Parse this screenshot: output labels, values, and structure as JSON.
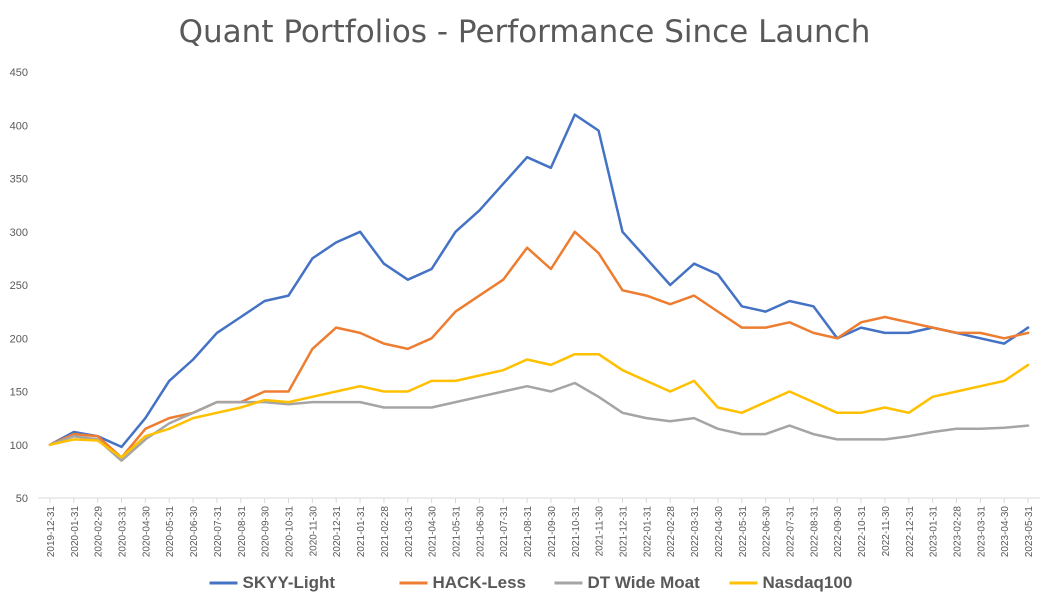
{
  "chart_data": {
    "type": "line",
    "title": "Quant Portfolios - Performance Since Launch",
    "xlabel": "",
    "ylabel": "",
    "ylim": [
      50,
      450
    ],
    "yticks": [
      50,
      100,
      150,
      200,
      250,
      300,
      350,
      400,
      450
    ],
    "grid": false,
    "legend_position": "bottom",
    "categories": [
      "2019-12-31",
      "2020-01-31",
      "2020-02-29",
      "2020-03-31",
      "2020-04-30",
      "2020-05-31",
      "2020-06-30",
      "2020-07-31",
      "2020-08-31",
      "2020-09-30",
      "2020-10-31",
      "2020-11-30",
      "2020-12-31",
      "2021-01-31",
      "2021-02-28",
      "2021-03-31",
      "2021-04-30",
      "2021-05-31",
      "2021-06-30",
      "2021-07-31",
      "2021-08-31",
      "2021-09-30",
      "2021-10-31",
      "2021-11-30",
      "2021-12-31",
      "2022-01-31",
      "2022-02-28",
      "2022-03-31",
      "2022-04-30",
      "2022-05-31",
      "2022-06-30",
      "2022-07-31",
      "2022-08-31",
      "2022-09-30",
      "2022-10-31",
      "2022-11-30",
      "2022-12-31",
      "2023-01-31",
      "2023-02-28",
      "2023-03-31",
      "2023-04-30",
      "2023-05-31"
    ],
    "series": [
      {
        "name": "SKYY-Light",
        "color": "#4472C4",
        "values": [
          100,
          112,
          108,
          98,
          125,
          160,
          180,
          205,
          220,
          235,
          240,
          275,
          290,
          300,
          270,
          255,
          265,
          300,
          320,
          345,
          370,
          360,
          410,
          395,
          300,
          275,
          250,
          270,
          260,
          230,
          225,
          235,
          230,
          200,
          210,
          205,
          205,
          210,
          205,
          200,
          195,
          210
        ]
      },
      {
        "name": "HACK-Less",
        "color": "#ED7D31",
        "values": [
          100,
          110,
          108,
          88,
          115,
          125,
          130,
          140,
          140,
          150,
          150,
          190,
          210,
          205,
          195,
          190,
          200,
          225,
          240,
          255,
          285,
          265,
          300,
          280,
          245,
          240,
          232,
          240,
          225,
          210,
          210,
          215,
          205,
          200,
          215,
          220,
          215,
          210,
          205,
          205,
          200,
          205
        ]
      },
      {
        "name": "DT Wide Moat",
        "color": "#A5A5A5",
        "values": [
          100,
          108,
          105,
          85,
          105,
          120,
          130,
          140,
          140,
          140,
          138,
          140,
          140,
          140,
          135,
          135,
          135,
          140,
          145,
          150,
          155,
          150,
          158,
          145,
          130,
          125,
          122,
          125,
          115,
          110,
          110,
          118,
          110,
          105,
          105,
          105,
          108,
          112,
          115,
          115,
          116,
          118
        ]
      },
      {
        "name": "Nasdaq100",
        "color": "#FFC000",
        "values": [
          100,
          105,
          104,
          88,
          108,
          115,
          125,
          130,
          135,
          142,
          140,
          145,
          150,
          155,
          150,
          150,
          160,
          160,
          165,
          170,
          180,
          175,
          185,
          185,
          170,
          160,
          150,
          160,
          135,
          130,
          140,
          150,
          140,
          130,
          130,
          135,
          130,
          145,
          150,
          155,
          160,
          175
        ]
      }
    ]
  }
}
